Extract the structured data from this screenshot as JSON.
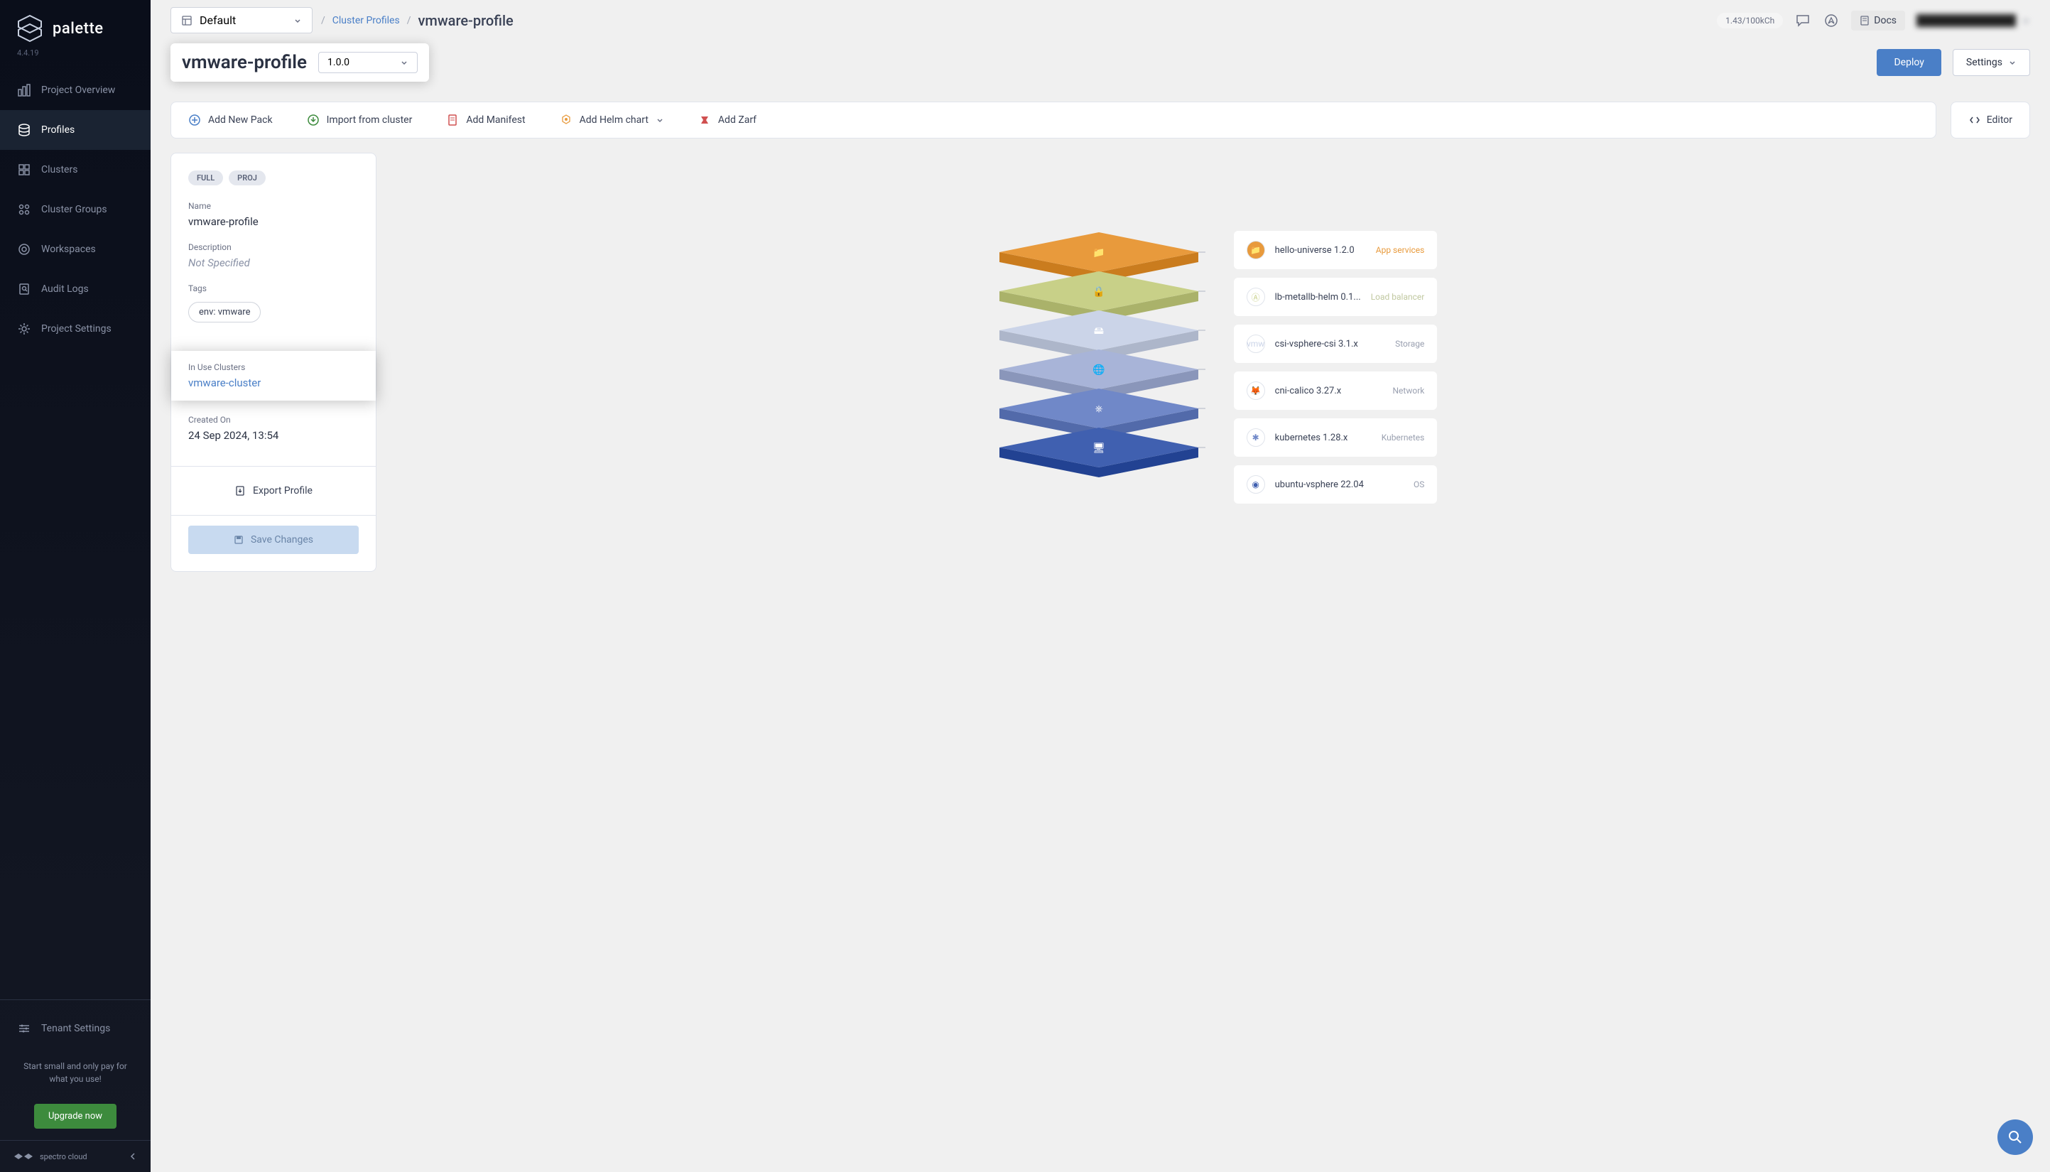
{
  "brand": {
    "name": "palette",
    "version": "4.4.19",
    "footer": "spectro cloud"
  },
  "nav": {
    "items": [
      {
        "label": "Project Overview",
        "icon": "overview"
      },
      {
        "label": "Profiles",
        "icon": "profiles",
        "active": true
      },
      {
        "label": "Clusters",
        "icon": "clusters"
      },
      {
        "label": "Cluster Groups",
        "icon": "cluster-groups"
      },
      {
        "label": "Workspaces",
        "icon": "workspaces"
      },
      {
        "label": "Audit Logs",
        "icon": "audit"
      },
      {
        "label": "Project Settings",
        "icon": "settings"
      }
    ],
    "tenant": {
      "label": "Tenant Settings"
    },
    "promo": "Start small and only pay for what you use!",
    "upgrade": "Upgrade now"
  },
  "header": {
    "project": "Default",
    "breadcrumb_link": "Cluster Profiles",
    "breadcrumb_current": "vmware-profile",
    "credit": "1.43/100kCh",
    "docs": "Docs"
  },
  "title": {
    "name": "vmware-profile",
    "version": "1.0.0",
    "deploy": "Deploy",
    "settings": "Settings"
  },
  "toolbar": {
    "add_pack": "Add New Pack",
    "import": "Import from cluster",
    "manifest": "Add Manifest",
    "helm": "Add Helm chart",
    "zarf": "Add Zarf",
    "editor": "Editor"
  },
  "detail": {
    "badges": [
      "FULL",
      "PROJ"
    ],
    "name_label": "Name",
    "name_value": "vmware-profile",
    "desc_label": "Description",
    "desc_value": "Not Specified",
    "tags_label": "Tags",
    "tag_value": "env: vmware",
    "inuse_label": "In Use Clusters",
    "cluster_link": "vmware-cluster",
    "created_label": "Created On",
    "created_value": "24 Sep 2024, 13:54",
    "export": "Export Profile",
    "save": "Save Changes"
  },
  "layers": [
    {
      "name": "hello-universe 1.2.0",
      "type": "App services",
      "type_color": "#e89a3c",
      "icon_bg": "#e89a3c",
      "stack_color": "#e89a3c"
    },
    {
      "name": "lb-metallb-helm 0.1...",
      "type": "Load balancer",
      "type_color": "#c0c8a0",
      "icon_bg": "#ffffff",
      "stack_color": "#c8d088"
    },
    {
      "name": "csi-vsphere-csi 3.1.x",
      "type": "Storage",
      "type_color": "#9aa0b0",
      "icon_bg": "#ffffff",
      "stack_color": "#cbd4e8"
    },
    {
      "name": "cni-calico 3.27.x",
      "type": "Network",
      "type_color": "#9aa0b0",
      "icon_bg": "#ffffff",
      "stack_color": "#a8b4d8"
    },
    {
      "name": "kubernetes 1.28.x",
      "type": "Kubernetes",
      "type_color": "#9aa0b0",
      "icon_bg": "#ffffff",
      "stack_color": "#7088c8"
    },
    {
      "name": "ubuntu-vsphere 22.04",
      "type": "OS",
      "type_color": "#9aa0b0",
      "icon_bg": "#ffffff",
      "stack_color": "#4060b0"
    }
  ],
  "colors": {
    "accent": "#4a7fc7",
    "bg": "#f0f0f0",
    "sidebar": "#0a0e1a",
    "upgrade": "#3d8b3d"
  }
}
